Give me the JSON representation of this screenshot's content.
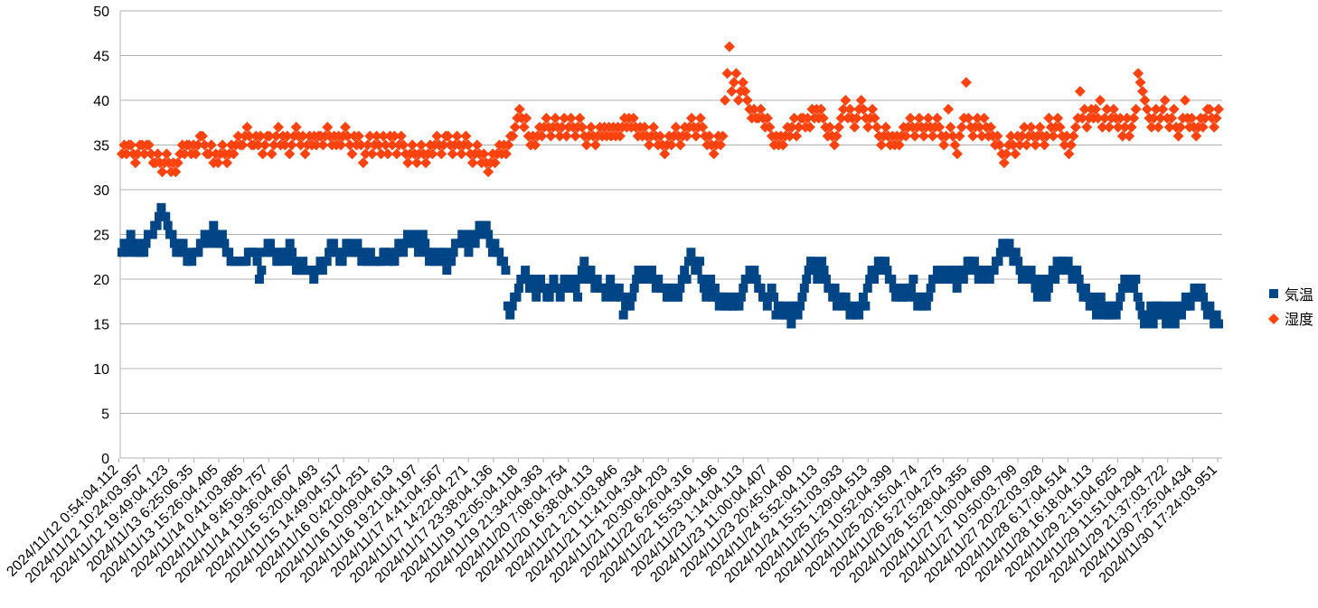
{
  "chart_data": {
    "type": "scatter",
    "title": "",
    "xlabel": "",
    "ylabel": "",
    "ylim": [
      0,
      50
    ],
    "yticks": [
      0,
      5,
      10,
      15,
      20,
      25,
      30,
      35,
      40,
      45,
      50
    ],
    "grid": true,
    "legend_position": "right",
    "x_tick_labels": [
      "2024/11/12 0:54:04.112",
      "2024/11/12 10:24:03.957",
      "2024/11/12 19:49:04.123",
      "2024/11/13 6:25:06.35",
      "2024/11/13 15:26:04.405",
      "2024/11/14 0:41:03.885",
      "2024/11/14 9:45:04.757",
      "2024/11/14 19:36:04.667",
      "2024/11/15 5:20:04.493",
      "2024/11/15 14:49:04.517",
      "2024/11/16 0:42:04.251",
      "2024/11/16 10:09:04.613",
      "2024/11/16 19:21:04.197",
      "2024/11/17 4:41:04.567",
      "2024/11/17 14:22:04.271",
      "2024/11/17 23:38:04.136",
      "2024/11/19 12:05:04.118",
      "2024/11/19 21:34:04.363",
      "2024/11/20 7:08:04.754",
      "2024/11/20 16:38:04.113",
      "2024/11/21 2:01:03.846",
      "2024/11/21 11:41:04.334",
      "2024/11/21 20:30:04.203",
      "2024/11/22 6:26:04.316",
      "2024/11/22 15:53:04.196",
      "2024/11/23 1:14:04.113",
      "2024/11/23 11:00:04.407",
      "2024/11/23 20:45:04.80",
      "2024/11/24 5:52:04.113",
      "2024/11/24 15:51:03.933",
      "2024/11/25 1:29:04.513",
      "2024/11/25 10:52:04.399",
      "2024/11/25 20:15:04.74",
      "2024/11/26 5:27:04.275",
      "2024/11/26 15:28:04.355",
      "2024/11/27 1:00:04.609",
      "2024/11/27 10:50:03.799",
      "2024/11/27 20:22:03.928",
      "2024/11/28 6:17:04.514",
      "2024/11/28 16:18:04.113",
      "2024/11/29 2:15:04.625",
      "2024/11/29 11:51:04.294",
      "2024/11/29 21:37:03.722",
      "2024/11/30 7:25:04.434",
      "2024/11/30 17:24:03.951"
    ],
    "series": [
      {
        "name": "気温",
        "color": "#004586",
        "marker": "square",
        "values": [
          23,
          24,
          24,
          23,
          25,
          24,
          24,
          23,
          23,
          24,
          23,
          24,
          25,
          25,
          25,
          26,
          26,
          27,
          28,
          27,
          27,
          26,
          25,
          25,
          24,
          23,
          23,
          24,
          24,
          23,
          22,
          22,
          22,
          23,
          23,
          23,
          24,
          24,
          25,
          25,
          24,
          25,
          26,
          25,
          24,
          24,
          25,
          24,
          23,
          23,
          22,
          22,
          22,
          22,
          22,
          22,
          22,
          22,
          23,
          23,
          23,
          23,
          22,
          20,
          21,
          23,
          23,
          24,
          24,
          23,
          23,
          22,
          22,
          23,
          23,
          22,
          23,
          24,
          23,
          22,
          21,
          21,
          21,
          22,
          21,
          21,
          21,
          21,
          20,
          21,
          21,
          22,
          21,
          22,
          22,
          23,
          24,
          24,
          23,
          23,
          22,
          22,
          23,
          24,
          24,
          23,
          23,
          23,
          24,
          23,
          22,
          23,
          22,
          22,
          23,
          22,
          22,
          22,
          22,
          22,
          23,
          23,
          22,
          23,
          22,
          22,
          23,
          24,
          24,
          23,
          24,
          25,
          24,
          24,
          24,
          25,
          23,
          24,
          25,
          24,
          23,
          22,
          23,
          22,
          22,
          23,
          22,
          22,
          23,
          21,
          22,
          22,
          23,
          24,
          24,
          24,
          25,
          25,
          24,
          23,
          25,
          25,
          24,
          25,
          26,
          26,
          25,
          26,
          25,
          24,
          23,
          24,
          23,
          23,
          22,
          22,
          21,
          17,
          16,
          17,
          18,
          18,
          19,
          20,
          20,
          21,
          20,
          19,
          19,
          20,
          18,
          19,
          20,
          19,
          19,
          18,
          18,
          19,
          20,
          19,
          19,
          18,
          19,
          20,
          20,
          19,
          19,
          20,
          19,
          18,
          20,
          21,
          22,
          21,
          20,
          21,
          20,
          19,
          20,
          19,
          19,
          19,
          18,
          19,
          20,
          19,
          18,
          19,
          19,
          18,
          16,
          17,
          18,
          17,
          18,
          19,
          20,
          21,
          20,
          21,
          21,
          21,
          20,
          21,
          20,
          19,
          20,
          19,
          19,
          19,
          18,
          18,
          19,
          19,
          18,
          18,
          19,
          20,
          21,
          20,
          22,
          23,
          22,
          21,
          21,
          22,
          20,
          19,
          18,
          19,
          20,
          18,
          19,
          18,
          17,
          18,
          18,
          17,
          17,
          18,
          17,
          17,
          18,
          17,
          18,
          19,
          20,
          20,
          21,
          20,
          21,
          20,
          19,
          19,
          18,
          18,
          17,
          18,
          19,
          18,
          16,
          17,
          17,
          16,
          16,
          16,
          17,
          15,
          16,
          17,
          16,
          17,
          18,
          19,
          20,
          21,
          22,
          22,
          21,
          20,
          21,
          22,
          21,
          20,
          19,
          19,
          18,
          19,
          17,
          18,
          18,
          17,
          18,
          17,
          16,
          16,
          17,
          16,
          16,
          17,
          18,
          17,
          19,
          20,
          21,
          20,
          21,
          22,
          22,
          21,
          22,
          21,
          20,
          20,
          19,
          18,
          19,
          18,
          18,
          19,
          18,
          19,
          19,
          20,
          18,
          17,
          18,
          17,
          18,
          17,
          18,
          19,
          20,
          20,
          21,
          20,
          21,
          20,
          20,
          21,
          20,
          21,
          21,
          19,
          20,
          21,
          20,
          21,
          22,
          22,
          21,
          22,
          21,
          20,
          21,
          21,
          20,
          21,
          20,
          21,
          21,
          22,
          22,
          23,
          24,
          24,
          23,
          24,
          23,
          22,
          23,
          22,
          21,
          20,
          21,
          20,
          20,
          21,
          20,
          19,
          18,
          19,
          20,
          19,
          18,
          19,
          20,
          21,
          20,
          22,
          21,
          22,
          22,
          21,
          22,
          21,
          20,
          21,
          21,
          20,
          19,
          18,
          19,
          18,
          17,
          18,
          17,
          16,
          17,
          18,
          17,
          16,
          16,
          17,
          16,
          17,
          16,
          17,
          18,
          19,
          20,
          20,
          19,
          20,
          19,
          20,
          18,
          17,
          16,
          15,
          16,
          16,
          17,
          15,
          16,
          17,
          16,
          17,
          16,
          15,
          16,
          17,
          16,
          15,
          16,
          17,
          16,
          17,
          18,
          17,
          17,
          18,
          19,
          19,
          18,
          19,
          18,
          17,
          16,
          17,
          16,
          15,
          16,
          15
        ]
      },
      {
        "name": "湿度",
        "color": "#ff420e",
        "marker": "diamond",
        "values": [
          34,
          35,
          34,
          35,
          35,
          34,
          33,
          34,
          35,
          35,
          34,
          35,
          35,
          34,
          33,
          33,
          34,
          33,
          32,
          33,
          34,
          33,
          32,
          33,
          32,
          33,
          34,
          35,
          34,
          35,
          35,
          34,
          35,
          34,
          35,
          36,
          36,
          35,
          34,
          34,
          35,
          33,
          34,
          33,
          34,
          35,
          34,
          33,
          34,
          35,
          34,
          35,
          36,
          35,
          35,
          36,
          37,
          36,
          35,
          35,
          36,
          35,
          36,
          34,
          35,
          36,
          36,
          34,
          35,
          36,
          37,
          35,
          36,
          35,
          36,
          34,
          35,
          36,
          37,
          36,
          35,
          36,
          34,
          35,
          36,
          35,
          36,
          35,
          36,
          36,
          35,
          36,
          37,
          36,
          35,
          36,
          35,
          36,
          35,
          36,
          37,
          36,
          35,
          34,
          36,
          35,
          36,
          35,
          33,
          34,
          35,
          36,
          34,
          35,
          36,
          35,
          34,
          36,
          35,
          34,
          36,
          35,
          36,
          34,
          35,
          36,
          35,
          34,
          33,
          34,
          35,
          34,
          33,
          34,
          35,
          34,
          33,
          34,
          35,
          34,
          35,
          36,
          35,
          34,
          35,
          36,
          36,
          35,
          34,
          35,
          36,
          35,
          34,
          35,
          36,
          35,
          34,
          33,
          34,
          35,
          34,
          33,
          34,
          33,
          32,
          33,
          34,
          33,
          34,
          35,
          34,
          35,
          34,
          35,
          36,
          36,
          37,
          38,
          39,
          38,
          37,
          38,
          36,
          35,
          36,
          35,
          36,
          37,
          36,
          37,
          38,
          37,
          36,
          37,
          38,
          37,
          36,
          37,
          38,
          36,
          37,
          38,
          37,
          36,
          37,
          38,
          37,
          36,
          35,
          36,
          37,
          36,
          35,
          36,
          37,
          36,
          37,
          36,
          37,
          36,
          37,
          36,
          37,
          36,
          37,
          38,
          37,
          38,
          37,
          38,
          37,
          36,
          37,
          36,
          37,
          36,
          35,
          36,
          37,
          36,
          35,
          36,
          35,
          34,
          35,
          36,
          35,
          36,
          37,
          36,
          35,
          36,
          37,
          36,
          37,
          38,
          37,
          36,
          37,
          38,
          37,
          36,
          35,
          36,
          35,
          34,
          35,
          36,
          35,
          36,
          40,
          43,
          46,
          41,
          42,
          43,
          40,
          41,
          42,
          41,
          40,
          39,
          38,
          39,
          38,
          38,
          39,
          38,
          37,
          38,
          37,
          36,
          35,
          36,
          35,
          36,
          35,
          36,
          37,
          36,
          37,
          38,
          36,
          37,
          38,
          38,
          37,
          38,
          37,
          39,
          38,
          39,
          38,
          39,
          38,
          37,
          36,
          37,
          36,
          35,
          36,
          37,
          38,
          39,
          40,
          38,
          39,
          38,
          37,
          38,
          39,
          40,
          39,
          38,
          37,
          38,
          39,
          38,
          37,
          36,
          35,
          36,
          37,
          36,
          35,
          36,
          35,
          36,
          35,
          36,
          37,
          36,
          37,
          38,
          37,
          36,
          37,
          38,
          37,
          36,
          37,
          38,
          37,
          36,
          37,
          38,
          37,
          36,
          35,
          36,
          39,
          37,
          36,
          35,
          34,
          36,
          37,
          38,
          42,
          38,
          37,
          36,
          37,
          38,
          37,
          36,
          38,
          37,
          36,
          37,
          36,
          35,
          36,
          35,
          34,
          33,
          34,
          35,
          36,
          35,
          34,
          36,
          35,
          36,
          37,
          35,
          36,
          37,
          36,
          35,
          36,
          37,
          36,
          35,
          36,
          38,
          37,
          36,
          37,
          38,
          37,
          36,
          35,
          36,
          34,
          35,
          36,
          37,
          38,
          41,
          38,
          39,
          37,
          38,
          39,
          38,
          39,
          38,
          40,
          37,
          38,
          39,
          37,
          38,
          39,
          38,
          37,
          38,
          36,
          37,
          38,
          36,
          37,
          38,
          39,
          43,
          42,
          41,
          40,
          39,
          38,
          37,
          38,
          39,
          37,
          38,
          39,
          40,
          38,
          37,
          38,
          39,
          37,
          36,
          37,
          38,
          40,
          38,
          37,
          38,
          37,
          36,
          37,
          38,
          37,
          38,
          39,
          39,
          38,
          37,
          38,
          39
        ]
      }
    ]
  }
}
